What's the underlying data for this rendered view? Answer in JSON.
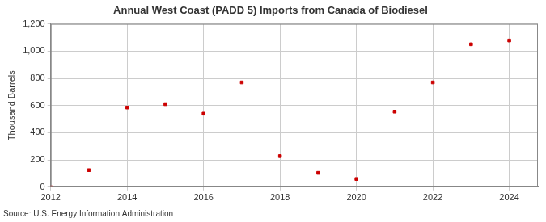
{
  "chart_data": {
    "type": "scatter",
    "title": "Annual West Coast (PADD 5) Imports from Canada of Biodiesel",
    "y_label": "Thousand Barrels",
    "annotations": [
      "Source: U.S. Energy Information Administration"
    ],
    "x": [
      2012,
      2013,
      2014,
      2015,
      2016,
      2017,
      2018,
      2019,
      2020,
      2021,
      2022,
      2023,
      2024
    ],
    "values": [
      0,
      125,
      585,
      610,
      540,
      770,
      228,
      105,
      60,
      555,
      770,
      1050,
      1078
    ],
    "color": "#cc0000",
    "marker": "square",
    "xlim": [
      2012,
      2024.75
    ],
    "xticks": [
      2012,
      2014,
      2016,
      2018,
      2020,
      2022,
      2024
    ],
    "ylim": [
      0,
      1200
    ],
    "yticks": [
      0,
      200,
      400,
      600,
      800,
      {
        "value": 1000,
        "label": "1,000"
      },
      {
        "value": 1200,
        "label": "1,200"
      }
    ],
    "grid": true
  }
}
